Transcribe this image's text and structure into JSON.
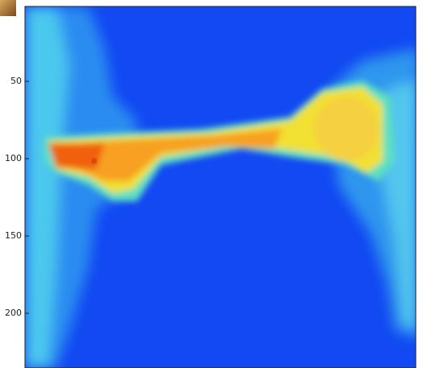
{
  "chart_data": {
    "type": "image",
    "ylim": [
      1.5,
      235.5
    ],
    "yticks": [
      50,
      100,
      150,
      200
    ]
  }
}
